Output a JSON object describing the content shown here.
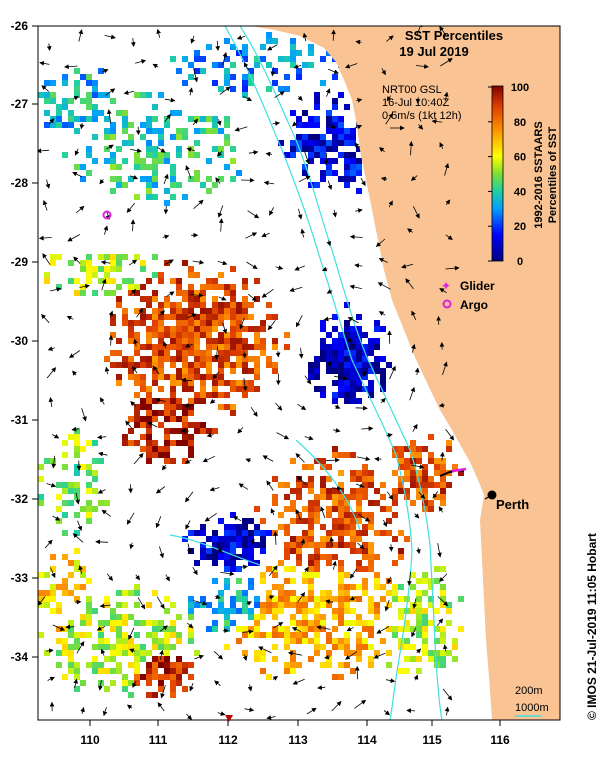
{
  "title": {
    "line1": "SST Percentiles",
    "line2": "19 Jul 2019"
  },
  "current_info": {
    "line1": "NRT00 GSL",
    "line2": "16-Jul 10:40Z",
    "line3": "0.5m/s (1kt 12h)"
  },
  "colorbar": {
    "label_line1": "1992-2016 SSTAARS",
    "label_line2": "Percentiles of SST",
    "ticks": [
      "100",
      "80",
      "60",
      "40",
      "20",
      "0"
    ]
  },
  "legend": {
    "glider": "Glider",
    "argo": "Argo"
  },
  "city": "Perth",
  "scale": {
    "depth1": "200m",
    "depth2": "1000m"
  },
  "credit": "© IMOS 21-Jul-2019 11:05 Hobart",
  "axes": {
    "x_ticks": [
      "110",
      "111",
      "112",
      "113",
      "114",
      "115",
      "116"
    ],
    "y_ticks": [
      "-26",
      "-27",
      "-28",
      "-29",
      "-30",
      "-31",
      "-32",
      "-33",
      "-34"
    ]
  },
  "colors": {
    "land": "#f9c393",
    "isobath": "#40e0e0",
    "glider": "#e020e0",
    "argo": "#e020e0"
  }
}
